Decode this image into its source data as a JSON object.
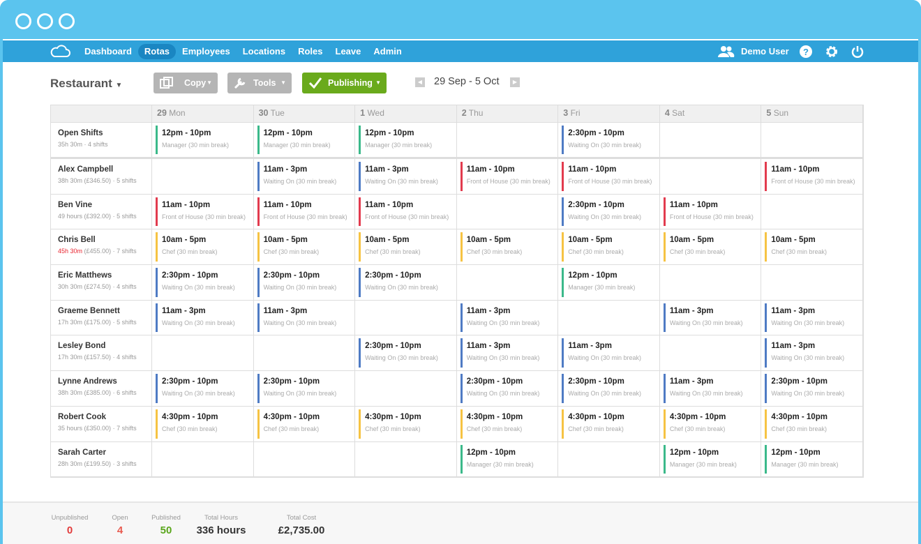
{
  "nav": {
    "items": [
      "Dashboard",
      "Rotas",
      "Employees",
      "Locations",
      "Roles",
      "Leave",
      "Admin"
    ],
    "user": "Demo User"
  },
  "toolbar": {
    "location": "Restaurant",
    "buttons": [
      "Copy",
      "Tools",
      "Publishing"
    ],
    "date_range": "29 Sep - 5 Oct"
  },
  "days": [
    {
      "num": 29,
      "name": "Mon"
    },
    {
      "num": 30,
      "name": "Tue"
    },
    {
      "num": 1,
      "name": "Wed"
    },
    {
      "num": 2,
      "name": "Thu"
    },
    {
      "num": 3,
      "name": "Fri"
    },
    {
      "num": 4,
      "name": "Sat"
    },
    {
      "num": 5,
      "name": "Sun"
    }
  ],
  "rows": [
    {
      "name": "Open Shifts",
      "hours": "35h 30m",
      "shifts": "4 shifts",
      "cells": [
        [
          "12pm - 10pm",
          "Manager (30 min break)",
          "#3bb98a"
        ],
        [
          "12pm - 10pm",
          "Manager (30 min break)",
          "#3bb98a"
        ],
        [
          "12pm - 10pm",
          "Manager (30 min break)",
          "#3bb98a"
        ],
        null,
        [
          "2:30pm - 10pm",
          "Waiting On (30 min break)",
          "#4f7bc4"
        ],
        null,
        null
      ]
    },
    {
      "name": "Alex Campbell",
      "hours": "38h 30m (£346.50)",
      "shifts": "5 shifts",
      "cells": [
        null,
        [
          "11am - 3pm",
          "Waiting On (30 min break)",
          "#4f7bc4"
        ],
        [
          "11am - 3pm",
          "Waiting On (30 min break)",
          "#4f7bc4"
        ],
        [
          "11am - 10pm",
          "Front of House (30 min break)",
          "#e23b4e"
        ],
        [
          "11am - 10pm",
          "Front of House (30 min break)",
          "#e23b4e"
        ],
        null,
        [
          "11am - 10pm",
          "Front of House (30 min break)",
          "#e23b4e"
        ]
      ]
    },
    {
      "name": "Ben Vine",
      "hours": "49 hours (£392.00)",
      "shifts": "5 shifts",
      "cells": [
        [
          "11am - 10pm",
          "Front of House (30 min break)",
          "#e23b4e"
        ],
        [
          "11am - 10pm",
          "Front of House (30 min break)",
          "#e23b4e"
        ],
        [
          "11am - 10pm",
          "Front of House (30 min break)",
          "#e23b4e"
        ],
        null,
        [
          "2:30pm - 10pm",
          "Waiting On (30 min break)",
          "#4f7bc4"
        ],
        [
          "11am - 10pm",
          "Front of House (30 min break)",
          "#e23b4e"
        ],
        null
      ]
    },
    {
      "name": "Chris Bell",
      "hours": "45h 30m",
      "cost": "(£455.00)",
      "hours_warning": true,
      "shifts": "7 shifts",
      "cells": [
        [
          "10am - 5pm",
          "Chef (30 min break)",
          "#f6c343"
        ],
        [
          "10am - 5pm",
          "Chef (30 min break)",
          "#f6c343"
        ],
        [
          "10am - 5pm",
          "Chef (30 min break)",
          "#f6c343"
        ],
        [
          "10am - 5pm",
          "Chef (30 min break)",
          "#f6c343"
        ],
        [
          "10am - 5pm",
          "Chef (30 min break)",
          "#f6c343"
        ],
        [
          "10am - 5pm",
          "Chef (30 min break)",
          "#f6c343"
        ],
        [
          "10am - 5pm",
          "Chef (30 min break)",
          "#f6c343"
        ]
      ]
    },
    {
      "name": "Eric Matthews",
      "hours": "30h 30m (£274.50)",
      "shifts": "4 shifts",
      "cells": [
        [
          "2:30pm - 10pm",
          "Waiting On (30 min break)",
          "#4f7bc4"
        ],
        [
          "2:30pm - 10pm",
          "Waiting On (30 min break)",
          "#4f7bc4"
        ],
        [
          "2:30pm - 10pm",
          "Waiting On (30 min break)",
          "#4f7bc4"
        ],
        null,
        [
          "12pm - 10pm",
          "Manager (30 min break)",
          "#3bb98a"
        ],
        null,
        null
      ]
    },
    {
      "name": "Graeme Bennett",
      "hours": "17h 30m (£175.00)",
      "shifts": "5 shifts",
      "cells": [
        [
          "11am - 3pm",
          "Waiting On (30 min break)",
          "#4f7bc4"
        ],
        [
          "11am - 3pm",
          "Waiting On (30 min break)",
          "#4f7bc4"
        ],
        null,
        [
          "11am - 3pm",
          "Waiting On (30 min break)",
          "#4f7bc4"
        ],
        null,
        [
          "11am - 3pm",
          "Waiting On (30 min break)",
          "#4f7bc4"
        ],
        [
          "11am - 3pm",
          "Waiting On (30 min break)",
          "#4f7bc4"
        ]
      ]
    },
    {
      "name": "Lesley Bond",
      "hours": "17h 30m (£157.50)",
      "shifts": "4 shifts",
      "cells": [
        null,
        null,
        [
          "2:30pm - 10pm",
          "Waiting On (30 min break)",
          "#4f7bc4"
        ],
        [
          "11am - 3pm",
          "Waiting On (30 min break)",
          "#4f7bc4"
        ],
        [
          "11am - 3pm",
          "Waiting On (30 min break)",
          "#4f7bc4"
        ],
        null,
        [
          "11am - 3pm",
          "Waiting On (30 min break)",
          "#4f7bc4"
        ]
      ]
    },
    {
      "name": "Lynne Andrews",
      "hours": "38h 30m (£385.00)",
      "shifts": "6 shifts",
      "cells": [
        [
          "2:30pm - 10pm",
          "Waiting On (30 min break)",
          "#4f7bc4"
        ],
        [
          "2:30pm - 10pm",
          "Waiting On (30 min break)",
          "#4f7bc4"
        ],
        null,
        [
          "2:30pm - 10pm",
          "Waiting On (30 min break)",
          "#4f7bc4"
        ],
        [
          "2:30pm - 10pm",
          "Waiting On (30 min break)",
          "#4f7bc4"
        ],
        [
          "11am - 3pm",
          "Waiting On (30 min break)",
          "#4f7bc4"
        ],
        [
          "2:30pm - 10pm",
          "Waiting On (30 min break)",
          "#4f7bc4"
        ]
      ]
    },
    {
      "name": "Robert Cook",
      "hours": "35 hours (£350.00)",
      "shifts": "7 shifts",
      "cells": [
        [
          "4:30pm - 10pm",
          "Chef (30 min break)",
          "#f6c343"
        ],
        [
          "4:30pm - 10pm",
          "Chef (30 min break)",
          "#f6c343"
        ],
        [
          "4:30pm - 10pm",
          "Chef (30 min break)",
          "#f6c343"
        ],
        [
          "4:30pm - 10pm",
          "Chef (30 min break)",
          "#f6c343"
        ],
        [
          "4:30pm - 10pm",
          "Chef (30 min break)",
          "#f6c343"
        ],
        [
          "4:30pm - 10pm",
          "Chef (30 min break)",
          "#f6c343"
        ],
        [
          "4:30pm - 10pm",
          "Chef (30 min break)",
          "#f6c343"
        ]
      ]
    },
    {
      "name": "Sarah Carter",
      "hours": "28h 30m (£199.50)",
      "shifts": "3 shifts",
      "cells": [
        null,
        null,
        null,
        [
          "12pm - 10pm",
          "Manager (30 min break)",
          "#3bb98a"
        ],
        null,
        [
          "12pm - 10pm",
          "Manager (30 min break)",
          "#3bb98a"
        ],
        [
          "12pm - 10pm",
          "Manager (30 min break)",
          "#3bb98a"
        ]
      ]
    }
  ],
  "footer": [
    {
      "label": "Unpublished",
      "value": 0,
      "color": "#e23b3b"
    },
    {
      "label": "Open",
      "value": 4,
      "color": "#e85a4f"
    },
    {
      "label": "Published",
      "value": 50,
      "color": "#5aa61c"
    },
    {
      "label": "Total Hours",
      "value": "336 hours",
      "color": "#333333"
    },
    {
      "label": "Total Cost",
      "value": "£2,735.00",
      "color": "#333333"
    }
  ]
}
